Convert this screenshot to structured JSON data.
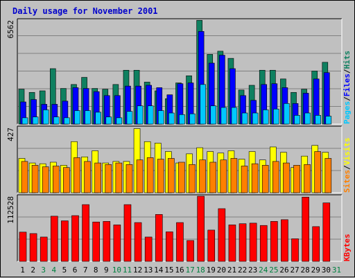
{
  "title": "Daily usage for November 2001",
  "colors": {
    "background": "#c0c0c0",
    "plot": "#c0c0c0",
    "hits": "#0f8060",
    "files": "#0000ff",
    "pages": "#00c8ff",
    "visits": "#ffff00",
    "sites": "#ff8000",
    "kbytes": "#ff0000",
    "weekend_label": "#008040",
    "weekday_label": "#000000",
    "title": "#0000cc"
  },
  "chart_data": [
    {
      "type": "bar",
      "name": "hits-files-pages",
      "ymax_label": "6562",
      "ylim": [
        0,
        6562
      ],
      "series_labels": [
        "Pages",
        "Files",
        "Hits"
      ],
      "series_separator": "/",
      "categories": [
        "1",
        "2",
        "3",
        "4",
        "5",
        "6",
        "7",
        "8",
        "9",
        "10",
        "11",
        "12",
        "13",
        "14",
        "15",
        "16",
        "17",
        "18",
        "19",
        "20",
        "21",
        "22",
        "23",
        "24",
        "25",
        "26",
        "27",
        "28",
        "29",
        "30",
        "31"
      ],
      "series": [
        {
          "name": "Hits",
          "values": [
            2200,
            2000,
            2100,
            3500,
            2250,
            2500,
            2950,
            2250,
            2200,
            2500,
            3400,
            3400,
            2650,
            2100,
            1600,
            2600,
            3050,
            6550,
            4400,
            4600,
            4150,
            2150,
            2450,
            3400,
            3400,
            2850,
            2000,
            2200,
            3350,
            3900,
            0
          ]
        },
        {
          "name": "Files",
          "values": [
            1400,
            1550,
            1250,
            1250,
            1450,
            2300,
            2250,
            2050,
            1800,
            1800,
            2400,
            2400,
            2450,
            2300,
            1850,
            2550,
            2600,
            5850,
            3850,
            4350,
            3500,
            1800,
            1500,
            2500,
            2550,
            2300,
            1300,
            1950,
            2850,
            3250,
            0
          ]
        },
        {
          "name": "Pages",
          "values": [
            400,
            450,
            900,
            450,
            400,
            850,
            850,
            750,
            450,
            400,
            800,
            1150,
            1150,
            850,
            700,
            600,
            650,
            2500,
            1150,
            1050,
            1050,
            700,
            700,
            900,
            950,
            1300,
            550,
            700,
            550,
            500,
            0
          ]
        }
      ]
    },
    {
      "type": "bar",
      "name": "visits-sites",
      "ymax_label": "427",
      "ylim": [
        0,
        427
      ],
      "series_labels": [
        "Sites",
        "Visits"
      ],
      "series_separator": "/",
      "categories": [
        "1",
        "2",
        "3",
        "4",
        "5",
        "6",
        "7",
        "8",
        "9",
        "10",
        "11",
        "12",
        "13",
        "14",
        "15",
        "16",
        "17",
        "18",
        "19",
        "20",
        "21",
        "22",
        "23",
        "24",
        "25",
        "26",
        "27",
        "28",
        "29",
        "30",
        "31"
      ],
      "series": [
        {
          "name": "Visits",
          "values": [
            225,
            195,
            190,
            200,
            180,
            335,
            235,
            275,
            195,
            205,
            205,
            420,
            335,
            325,
            270,
            195,
            255,
            295,
            270,
            260,
            275,
            220,
            270,
            215,
            300,
            265,
            165,
            240,
            310,
            265,
            0
          ]
        },
        {
          "name": "Sites",
          "values": [
            205,
            180,
            170,
            175,
            165,
            230,
            205,
            195,
            185,
            195,
            185,
            215,
            230,
            220,
            225,
            200,
            185,
            215,
            200,
            215,
            225,
            175,
            190,
            180,
            205,
            195,
            180,
            185,
            270,
            225,
            0
          ]
        }
      ]
    },
    {
      "type": "bar",
      "name": "kbytes",
      "ymax_label": "112528",
      "ylim": [
        0,
        112528
      ],
      "series_labels": [
        "KBytes"
      ],
      "categories": [
        "1",
        "2",
        "3",
        "4",
        "5",
        "6",
        "7",
        "8",
        "9",
        "10",
        "11",
        "12",
        "13",
        "14",
        "15",
        "16",
        "17",
        "18",
        "19",
        "20",
        "21",
        "22",
        "23",
        "24",
        "25",
        "26",
        "27",
        "28",
        "29",
        "30",
        "31"
      ],
      "series": [
        {
          "name": "KBytes",
          "values": [
            50500,
            48000,
            42000,
            78000,
            70000,
            79000,
            98000,
            68000,
            69000,
            63000,
            98000,
            67000,
            42000,
            81000,
            51000,
            67000,
            36000,
            112528,
            54000,
            91000,
            63000,
            65000,
            66000,
            62000,
            69000,
            72000,
            39000,
            111000,
            60000,
            101000,
            0
          ]
        }
      ]
    }
  ],
  "x_labels": [
    "1",
    "2",
    "3",
    "4",
    "5",
    "6",
    "7",
    "8",
    "9",
    "10",
    "11",
    "12",
    "13",
    "14",
    "15",
    "16",
    "17",
    "18",
    "19",
    "20",
    "21",
    "22",
    "23",
    "24",
    "25",
    "26",
    "27",
    "28",
    "29",
    "30",
    "31"
  ],
  "weekend_days": [
    3,
    4,
    10,
    11,
    17,
    18,
    24,
    25,
    31
  ]
}
